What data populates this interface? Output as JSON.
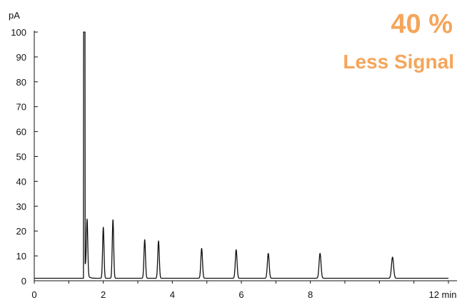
{
  "chart_data": {
    "type": "line",
    "y_unit": "pA",
    "x_unit": "min",
    "xlim": [
      0,
      12
    ],
    "ylim": [
      0,
      100
    ],
    "x_ticks": [
      0,
      2,
      4,
      6,
      8,
      12
    ],
    "x_tick_labels": [
      "0",
      "2",
      "4",
      "6",
      "8",
      "12 min"
    ],
    "y_ticks": [
      0,
      10,
      20,
      30,
      40,
      50,
      60,
      70,
      80,
      90,
      100
    ],
    "y_tick_labels": [
      "0",
      "10",
      "20",
      "30",
      "40",
      "50",
      "60",
      "70",
      "80",
      "90",
      "100"
    ],
    "grid": false,
    "annotation": {
      "line1": "40 %",
      "line2": "Less Signal",
      "color": "#F5A55A"
    },
    "baseline": 1.0,
    "solvent_peak": {
      "x": 1.45,
      "height": 100,
      "width": 0.04,
      "tail_decay": 0.05
    },
    "peaks": [
      {
        "x": 1.53,
        "height": 23
      },
      {
        "x": 2.0,
        "height": 21.5
      },
      {
        "x": 2.28,
        "height": 24.5
      },
      {
        "x": 3.2,
        "height": 16.5
      },
      {
        "x": 3.6,
        "height": 16
      },
      {
        "x": 4.85,
        "height": 13
      },
      {
        "x": 5.85,
        "height": 12.5
      },
      {
        "x": 6.78,
        "height": 11
      },
      {
        "x": 8.28,
        "height": 11
      },
      {
        "x": 10.38,
        "height": 9.5
      }
    ],
    "line_color": "#111111"
  }
}
